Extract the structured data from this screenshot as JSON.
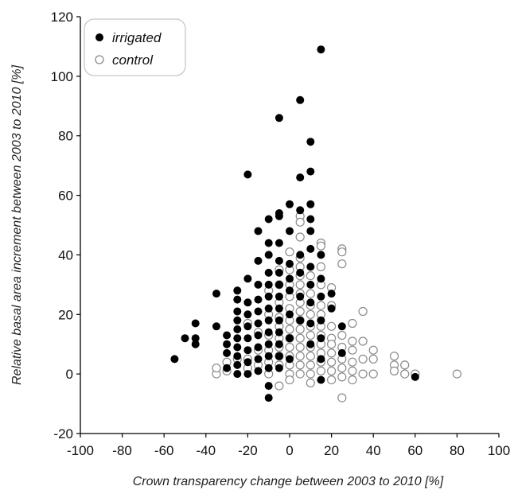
{
  "chart_data": {
    "type": "scatter",
    "title": "",
    "xlabel": "Crown transparency change between 2003 to 2010 [%]",
    "ylabel": "Relative basal area increment  between 2003 to 2010 [%]",
    "xlim": [
      -100,
      100
    ],
    "ylim": [
      -20,
      120
    ],
    "xticks": [
      -100,
      -80,
      -60,
      -40,
      -20,
      0,
      20,
      40,
      60,
      80,
      100
    ],
    "yticks": [
      -20,
      0,
      20,
      40,
      60,
      80,
      100,
      120
    ],
    "xtick_labels": [
      "-100",
      "-80",
      "-60",
      "-40",
      "-20",
      "0",
      "20",
      "40",
      "60",
      "80",
      "100"
    ],
    "ytick_labels": [
      "-20",
      "0",
      "20",
      "40",
      "60",
      "80",
      "100",
      "120"
    ],
    "grid": false,
    "legend_position": "top-left",
    "series": [
      {
        "name": "irrigated",
        "marker": "filled-circle",
        "color": "#000000",
        "points": [
          [
            -55,
            5
          ],
          [
            -50,
            12
          ],
          [
            -45,
            10
          ],
          [
            -45,
            12
          ],
          [
            -45,
            17
          ],
          [
            -35,
            16
          ],
          [
            -35,
            27
          ],
          [
            -30,
            7
          ],
          [
            -30,
            10
          ],
          [
            -30,
            13
          ],
          [
            -30,
            2
          ],
          [
            -25,
            0
          ],
          [
            -25,
            3
          ],
          [
            -25,
            6
          ],
          [
            -25,
            9
          ],
          [
            -25,
            12
          ],
          [
            -25,
            15
          ],
          [
            -25,
            18
          ],
          [
            -25,
            21
          ],
          [
            -25,
            25
          ],
          [
            -25,
            28
          ],
          [
            -20,
            67
          ],
          [
            -20,
            32
          ],
          [
            -20,
            24
          ],
          [
            -20,
            20
          ],
          [
            -20,
            16
          ],
          [
            -20,
            12
          ],
          [
            -20,
            8
          ],
          [
            -20,
            4
          ],
          [
            -20,
            0
          ],
          [
            -15,
            48
          ],
          [
            -15,
            38
          ],
          [
            -15,
            30
          ],
          [
            -15,
            25
          ],
          [
            -15,
            21
          ],
          [
            -15,
            17
          ],
          [
            -15,
            13
          ],
          [
            -15,
            9
          ],
          [
            -15,
            5
          ],
          [
            -15,
            1
          ],
          [
            -10,
            52
          ],
          [
            -10,
            44
          ],
          [
            -10,
            40
          ],
          [
            -10,
            34
          ],
          [
            -10,
            30
          ],
          [
            -10,
            26
          ],
          [
            -10,
            22
          ],
          [
            -10,
            18
          ],
          [
            -10,
            14
          ],
          [
            -10,
            10
          ],
          [
            -10,
            6
          ],
          [
            -10,
            2
          ],
          [
            -10,
            -4
          ],
          [
            -10,
            -8
          ],
          [
            -5,
            86
          ],
          [
            -5,
            54
          ],
          [
            -5,
            53
          ],
          [
            -5,
            44
          ],
          [
            -5,
            38
          ],
          [
            -5,
            34
          ],
          [
            -5,
            30
          ],
          [
            -5,
            26
          ],
          [
            -5,
            22
          ],
          [
            -5,
            18
          ],
          [
            -5,
            14
          ],
          [
            -5,
            10
          ],
          [
            -5,
            6
          ],
          [
            -5,
            2
          ],
          [
            0,
            57
          ],
          [
            0,
            48
          ],
          [
            0,
            37
          ],
          [
            0,
            32
          ],
          [
            0,
            28
          ],
          [
            0,
            20
          ],
          [
            0,
            12
          ],
          [
            0,
            5
          ],
          [
            5,
            92
          ],
          [
            5,
            66
          ],
          [
            5,
            55
          ],
          [
            5,
            40
          ],
          [
            5,
            34
          ],
          [
            5,
            26
          ],
          [
            5,
            18
          ],
          [
            10,
            78
          ],
          [
            10,
            68
          ],
          [
            10,
            57
          ],
          [
            10,
            52
          ],
          [
            10,
            48
          ],
          [
            10,
            42
          ],
          [
            10,
            36
          ],
          [
            10,
            30
          ],
          [
            10,
            24
          ],
          [
            10,
            17
          ],
          [
            10,
            10
          ],
          [
            15,
            109
          ],
          [
            15,
            40
          ],
          [
            15,
            32
          ],
          [
            15,
            26
          ],
          [
            15,
            18
          ],
          [
            15,
            12
          ],
          [
            15,
            5
          ],
          [
            15,
            -2
          ],
          [
            20,
            27
          ],
          [
            20,
            22
          ],
          [
            25,
            16
          ],
          [
            25,
            7
          ],
          [
            60,
            -1
          ]
        ]
      },
      {
        "name": "control",
        "marker": "open-circle",
        "color": "#8a8a8a",
        "points": [
          [
            -35,
            0
          ],
          [
            -35,
            2
          ],
          [
            -30,
            1
          ],
          [
            -30,
            4
          ],
          [
            -25,
            5
          ],
          [
            -20,
            17
          ],
          [
            -20,
            5
          ],
          [
            -20,
            2
          ],
          [
            -15,
            14
          ],
          [
            -15,
            8
          ],
          [
            -15,
            3
          ],
          [
            -10,
            28
          ],
          [
            -10,
            20
          ],
          [
            -10,
            13
          ],
          [
            -10,
            8
          ],
          [
            -10,
            4
          ],
          [
            -10,
            0
          ],
          [
            -5,
            35
          ],
          [
            -5,
            30
          ],
          [
            -5,
            24
          ],
          [
            -5,
            19
          ],
          [
            -5,
            16
          ],
          [
            -5,
            12
          ],
          [
            -5,
            9
          ],
          [
            -5,
            6
          ],
          [
            -5,
            3
          ],
          [
            -5,
            -4
          ],
          [
            0,
            41
          ],
          [
            0,
            35
          ],
          [
            0,
            30
          ],
          [
            0,
            26
          ],
          [
            0,
            22
          ],
          [
            0,
            18
          ],
          [
            0,
            15
          ],
          [
            0,
            12
          ],
          [
            0,
            9
          ],
          [
            0,
            6
          ],
          [
            0,
            3
          ],
          [
            0,
            0
          ],
          [
            0,
            -2
          ],
          [
            5,
            53
          ],
          [
            5,
            51
          ],
          [
            5,
            46
          ],
          [
            5,
            39
          ],
          [
            5,
            36
          ],
          [
            5,
            33
          ],
          [
            5,
            30
          ],
          [
            5,
            27
          ],
          [
            5,
            24
          ],
          [
            5,
            21
          ],
          [
            5,
            18
          ],
          [
            5,
            15
          ],
          [
            5,
            12
          ],
          [
            5,
            9
          ],
          [
            5,
            6
          ],
          [
            5,
            3
          ],
          [
            5,
            0
          ],
          [
            10,
            33
          ],
          [
            10,
            27
          ],
          [
            10,
            23
          ],
          [
            10,
            20
          ],
          [
            10,
            16
          ],
          [
            10,
            13
          ],
          [
            10,
            9
          ],
          [
            10,
            6
          ],
          [
            10,
            3
          ],
          [
            10,
            0
          ],
          [
            10,
            -3
          ],
          [
            15,
            44
          ],
          [
            15,
            43
          ],
          [
            15,
            36
          ],
          [
            15,
            30
          ],
          [
            15,
            23
          ],
          [
            15,
            20
          ],
          [
            15,
            16
          ],
          [
            15,
            13
          ],
          [
            15,
            10
          ],
          [
            15,
            7
          ],
          [
            15,
            4
          ],
          [
            15,
            1
          ],
          [
            20,
            29
          ],
          [
            20,
            23
          ],
          [
            20,
            16
          ],
          [
            20,
            12
          ],
          [
            20,
            10
          ],
          [
            20,
            7
          ],
          [
            20,
            4
          ],
          [
            20,
            1
          ],
          [
            20,
            -2
          ],
          [
            25,
            42
          ],
          [
            25,
            41
          ],
          [
            25,
            37
          ],
          [
            25,
            13
          ],
          [
            25,
            9
          ],
          [
            25,
            5
          ],
          [
            25,
            2
          ],
          [
            25,
            -1
          ],
          [
            25,
            -8
          ],
          [
            30,
            17
          ],
          [
            30,
            11
          ],
          [
            30,
            8
          ],
          [
            30,
            4
          ],
          [
            30,
            1
          ],
          [
            30,
            -2
          ],
          [
            35,
            21
          ],
          [
            35,
            11
          ],
          [
            35,
            5
          ],
          [
            35,
            0
          ],
          [
            40,
            8
          ],
          [
            40,
            5
          ],
          [
            40,
            0
          ],
          [
            50,
            6
          ],
          [
            50,
            3
          ],
          [
            50,
            1
          ],
          [
            55,
            3
          ],
          [
            55,
            0
          ],
          [
            60,
            0
          ],
          [
            80,
            0
          ]
        ]
      }
    ]
  }
}
